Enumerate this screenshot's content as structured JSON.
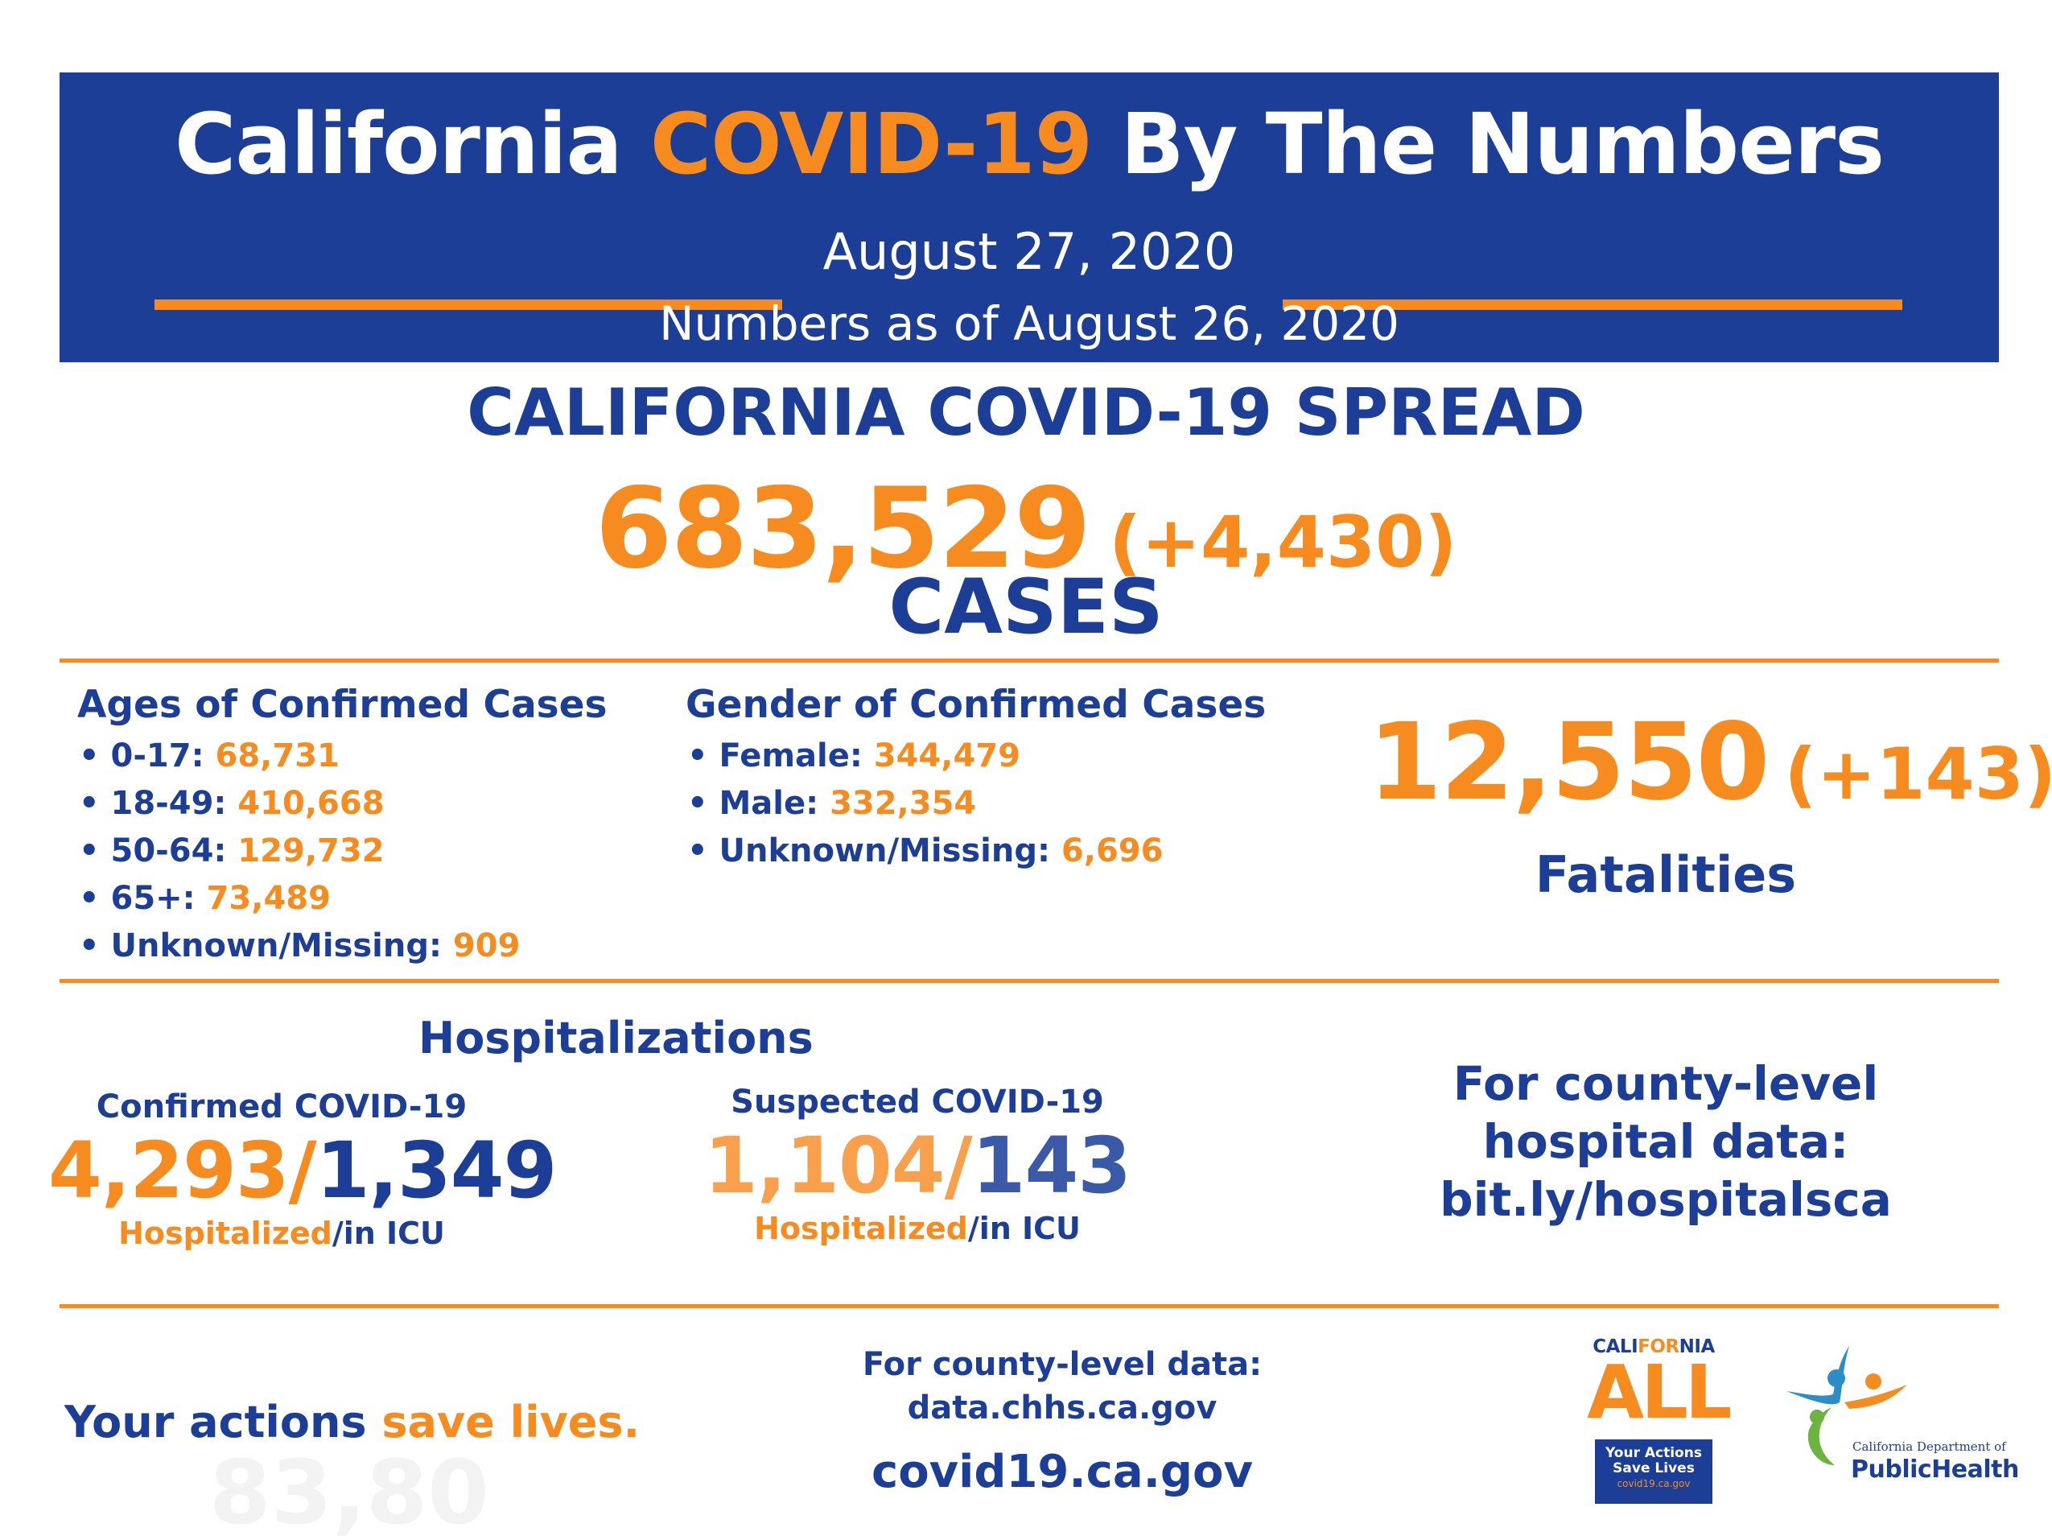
{
  "header": {
    "title_part1": "California ",
    "title_highlight": "COVID-19",
    "title_part2": " By The Numbers",
    "date": "August 27, 2020",
    "as_of": "Numbers as of August 26, 2020"
  },
  "spread": {
    "heading": "CALIFORNIA COVID-19 SPREAD",
    "total": "683,529",
    "change": "(+4,430)",
    "label": "CASES"
  },
  "ages": {
    "title": "Ages of Confirmed Cases",
    "items": [
      {
        "label": "• 0-17: ",
        "value": "68,731"
      },
      {
        "label": "• 18-49: ",
        "value": "410,668"
      },
      {
        "label": "• 50-64: ",
        "value": "129,732"
      },
      {
        "label": "• 65+: ",
        "value": "73,489"
      },
      {
        "label": "• Unknown/Missing: ",
        "value": "909"
      }
    ]
  },
  "gender": {
    "title": "Gender of Confirmed Cases",
    "items": [
      {
        "label": "• Female: ",
        "value": "344,479"
      },
      {
        "label": "• Male: ",
        "value": "332,354"
      },
      {
        "label": "• Unknown/Missing: ",
        "value": "6,696"
      }
    ]
  },
  "fatalities": {
    "total": "12,550",
    "change": "(+143)",
    "label": "Fatalities"
  },
  "hospitalizations": {
    "title": "Hospitalizations",
    "confirmed": {
      "label": "Confirmed COVID-19",
      "hospitalized": "4,293/",
      "icu": "1,349",
      "legend_hosp": "Hospitalized",
      "legend_icu": "/in ICU"
    },
    "suspected": {
      "label": "Suspected COVID-19",
      "hospitalized": "1,104/",
      "icu": "143",
      "legend_hosp": "Hospitalized",
      "legend_icu": "/in ICU"
    },
    "county_link": {
      "line1": "For county-level",
      "line2": "hospital data:",
      "line3": "bit.ly/hospitalsca"
    }
  },
  "footer": {
    "tagline_part1": "Your actions ",
    "tagline_part2": "save lives.",
    "ghost_number": "83,80",
    "county_data_line1": "For county-level data:",
    "county_data_line2": "data.chhs.ca.gov",
    "site": "covid19.ca.gov"
  },
  "logos": {
    "ca_all": {
      "word_pre": "CALI",
      "word_for": "FOR",
      "word_post": "NIA",
      "big": "ALL",
      "box_line1": "Your Actions",
      "box_line2": "Save Lives",
      "box_line3": "covid19.ca.gov"
    },
    "cdph": {
      "dept": "California Department of",
      "name": "PublicHealth"
    }
  },
  "colors": {
    "brand_blue": "#1c3e97",
    "brand_orange": "#f68c1f"
  }
}
